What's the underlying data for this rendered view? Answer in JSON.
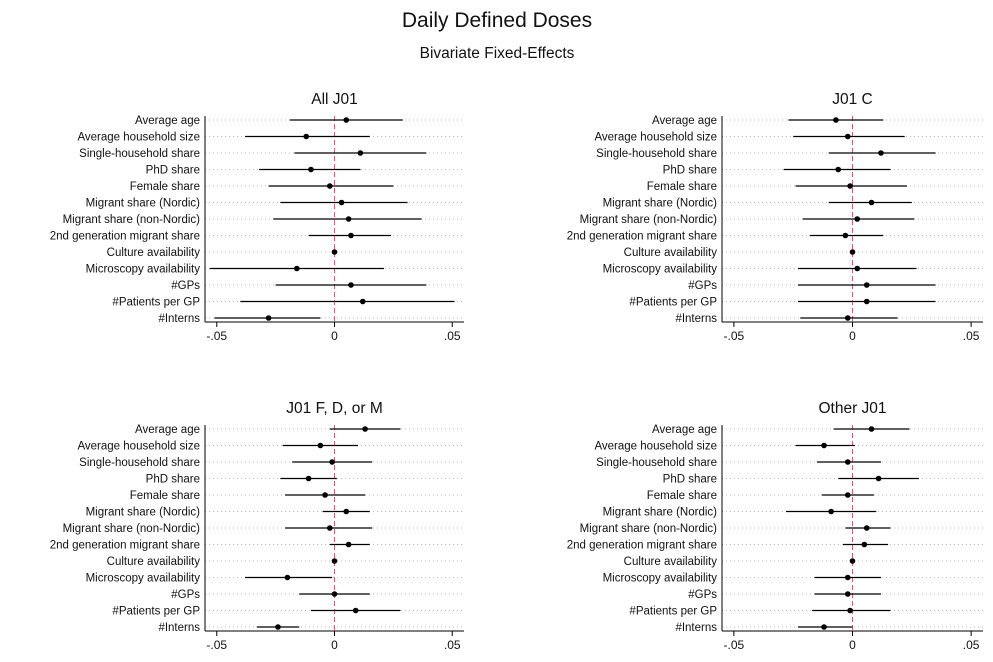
{
  "figure": {
    "title": "Daily Defined Doses",
    "subtitle": "Bivariate Fixed-Effects"
  },
  "colors": {
    "point": "#000000",
    "ci": "#000000",
    "zero_line": "#c0607a",
    "grid": "#b8b8b8",
    "axis": "#000000"
  },
  "chart_data": [
    {
      "type": "scatter",
      "title": "All J01",
      "categories": [
        "Average age",
        "Average household size",
        "Single-household share",
        "PhD share",
        "Female share",
        "Migrant share (Nordic)",
        "Migrant share (non-Nordic)",
        "2nd generation migrant share",
        "Culture availability",
        "Microscopy availability",
        "#GPs",
        "#Patients per GP",
        "#Interns"
      ],
      "estimate": [
        0.005,
        -0.012,
        0.011,
        -0.01,
        -0.002,
        0.003,
        0.006,
        0.007,
        0.0,
        -0.016,
        0.007,
        0.012,
        -0.028
      ],
      "ci_low": [
        -0.019,
        -0.038,
        -0.017,
        -0.032,
        -0.028,
        -0.023,
        -0.026,
        -0.011,
        0.0,
        -0.053,
        -0.025,
        -0.04,
        -0.051
      ],
      "ci_high": [
        0.029,
        0.015,
        0.039,
        0.011,
        0.025,
        0.031,
        0.037,
        0.024,
        0.0,
        0.021,
        0.039,
        0.051,
        -0.006
      ],
      "xlim": [
        -0.055,
        0.055
      ],
      "xticks": [
        -0.05,
        0,
        0.05
      ],
      "xtick_labels": [
        "-.05",
        "0",
        ".05"
      ]
    },
    {
      "type": "scatter",
      "title": "J01 C",
      "categories": [
        "Average age",
        "Average household size",
        "Single-household share",
        "PhD share",
        "Female share",
        "Migrant share (Nordic)",
        "Migrant share (non-Nordic)",
        "2nd generation migrant share",
        "Culture availability",
        "Microscopy availability",
        "#GPs",
        "#Patients per GP",
        "#Interns"
      ],
      "estimate": [
        -0.007,
        -0.002,
        0.012,
        -0.006,
        -0.001,
        0.008,
        0.002,
        -0.003,
        0.0,
        0.002,
        0.006,
        0.006,
        -0.002
      ],
      "ci_low": [
        -0.027,
        -0.025,
        -0.01,
        -0.029,
        -0.024,
        -0.01,
        -0.021,
        -0.018,
        0.0,
        -0.023,
        -0.023,
        -0.023,
        -0.022
      ],
      "ci_high": [
        0.013,
        0.022,
        0.035,
        0.016,
        0.023,
        0.025,
        0.026,
        0.013,
        0.0,
        0.027,
        0.035,
        0.035,
        0.019
      ],
      "xlim": [
        -0.055,
        0.055
      ],
      "xticks": [
        -0.05,
        0,
        0.05
      ],
      "xtick_labels": [
        "-.05",
        "0",
        ".05"
      ]
    },
    {
      "type": "scatter",
      "title": "J01 F, D, or M",
      "categories": [
        "Average age",
        "Average household size",
        "Single-household share",
        "PhD share",
        "Female share",
        "Migrant share (Nordic)",
        "Migrant share (non-Nordic)",
        "2nd generation migrant share",
        "Culture availability",
        "Microscopy availability",
        "#GPs",
        "#Patients per GP",
        "#Interns"
      ],
      "estimate": [
        0.013,
        -0.006,
        -0.001,
        -0.011,
        -0.004,
        0.005,
        -0.002,
        0.006,
        0.0,
        -0.02,
        0.0,
        0.009,
        -0.024
      ],
      "ci_low": [
        -0.002,
        -0.022,
        -0.018,
        -0.023,
        -0.021,
        -0.005,
        -0.021,
        -0.002,
        0.0,
        -0.038,
        -0.015,
        -0.01,
        -0.033
      ],
      "ci_high": [
        0.028,
        0.01,
        0.016,
        0.001,
        0.013,
        0.015,
        0.016,
        0.015,
        0.0,
        -0.001,
        0.015,
        0.028,
        -0.015
      ],
      "xlim": [
        -0.055,
        0.055
      ],
      "xticks": [
        -0.05,
        0,
        0.05
      ],
      "xtick_labels": [
        "-.05",
        "0",
        ".05"
      ]
    },
    {
      "type": "scatter",
      "title": "Other J01",
      "categories": [
        "Average age",
        "Average household size",
        "Single-household share",
        "PhD share",
        "Female share",
        "Migrant share (Nordic)",
        "Migrant share (non-Nordic)",
        "2nd generation migrant share",
        "Culture availability",
        "Microscopy availability",
        "#GPs",
        "#Patients per GP",
        "#Interns"
      ],
      "estimate": [
        0.008,
        -0.012,
        -0.002,
        0.011,
        -0.002,
        -0.009,
        0.006,
        0.005,
        0.0,
        -0.002,
        -0.002,
        -0.001,
        -0.012
      ],
      "ci_low": [
        -0.008,
        -0.024,
        -0.015,
        -0.006,
        -0.013,
        -0.028,
        -0.003,
        -0.004,
        0.0,
        -0.016,
        -0.016,
        -0.017,
        -0.023
      ],
      "ci_high": [
        0.024,
        0.001,
        0.012,
        0.028,
        0.009,
        0.01,
        0.016,
        0.015,
        0.0,
        0.012,
        0.012,
        0.016,
        0.0
      ],
      "xlim": [
        -0.055,
        0.055
      ],
      "xticks": [
        -0.05,
        0,
        0.05
      ],
      "xtick_labels": [
        "-.05",
        "0",
        ".05"
      ]
    }
  ]
}
